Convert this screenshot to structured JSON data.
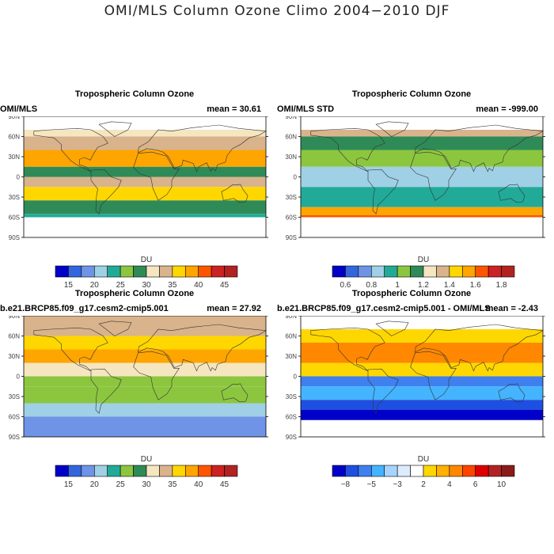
{
  "title": "OMI/MLS Column Ozone Climo 2004−2010 DJF",
  "panels": [
    {
      "title": "Tropospheric Column Ozone",
      "left_label": "OMI/MLS",
      "mean_text": "mean =  30.61",
      "lat_labels": [
        "90N",
        "60N",
        "30N",
        "0",
        "30S",
        "60S",
        "90S"
      ],
      "colorbar": {
        "unit": "DU",
        "colors": [
          "#0000c8",
          "#3366dd",
          "#6f93e6",
          "#9fd0e6",
          "#22aa99",
          "#8cc63f",
          "#2e8b57",
          "#f5e6c0",
          "#d9b38c",
          "#ffd700",
          "#ffa500",
          "#ff5500",
          "#cc2222",
          "#b22222"
        ],
        "tick_labels": [
          "15",
          "20",
          "25",
          "30",
          "35",
          "40",
          "45"
        ]
      }
    },
    {
      "title": "Tropospheric Column Ozone",
      "left_label": "OMI/MLS STD",
      "mean_text": "mean = -999.00",
      "lat_labels": [
        "90N",
        "60N",
        "30N",
        "0",
        "30S",
        "60S",
        "90S"
      ],
      "colorbar": {
        "unit": "DU",
        "colors": [
          "#0000c8",
          "#3366dd",
          "#6f93e6",
          "#9fd0e6",
          "#22aa99",
          "#8cc63f",
          "#2e8b57",
          "#f5e6c0",
          "#d9b38c",
          "#ffd700",
          "#ffa500",
          "#ff5500",
          "#cc2222",
          "#b22222"
        ],
        "tick_labels": [
          "0.6",
          "0.8",
          "1",
          "1.2",
          "1.4",
          "1.6",
          "1.8"
        ]
      }
    },
    {
      "title": "Tropospheric Column Ozone",
      "left_label": "b.e21.BRCP85.f09_g17.cesm2-cmip5.001",
      "mean_text": "mean =  27.92",
      "lat_labels": [
        "90N",
        "60N",
        "30N",
        "0",
        "30S",
        "60S",
        "90S"
      ],
      "colorbar": {
        "unit": "DU",
        "colors": [
          "#0000c8",
          "#3366dd",
          "#6f93e6",
          "#9fd0e6",
          "#22aa99",
          "#8cc63f",
          "#2e8b57",
          "#f5e6c0",
          "#d9b38c",
          "#ffd700",
          "#ffa500",
          "#ff5500",
          "#cc2222",
          "#b22222"
        ],
        "tick_labels": [
          "15",
          "20",
          "25",
          "30",
          "35",
          "40",
          "45"
        ]
      }
    },
    {
      "title": "Tropospheric Column Ozone",
      "left_label": "b.e21.BRCP85.f09_g17.cesm2-cmip5.001 - OMI/MLS",
      "mean_text": "mean = -2.43",
      "lat_labels": [
        "90N",
        "60N",
        "30N",
        "0",
        "30S",
        "60S",
        "90S"
      ],
      "colorbar": {
        "unit": "DU",
        "colors": [
          "#0000c8",
          "#1f4fe0",
          "#3f7ff0",
          "#44b4ff",
          "#a6d4ff",
          "#dcecff",
          "#ffffff",
          "#ffd700",
          "#ffb000",
          "#ff8800",
          "#ff4400",
          "#dd0000",
          "#b22222",
          "#8b1a1a"
        ],
        "tick_labels": [
          "−8",
          "−5",
          "−3",
          "2",
          "4",
          "6",
          "10"
        ]
      }
    }
  ],
  "chart_data": [
    {
      "type": "heatmap",
      "title": "Tropospheric Column Ozone",
      "subtitle": "OMI/MLS",
      "units": "DU",
      "mean": 30.61,
      "ylim_deg": [
        -90,
        90
      ],
      "y_ticks": [
        "90N",
        "60N",
        "30N",
        "0",
        "30S",
        "60S",
        "90S"
      ],
      "colorbar_levels": [
        15,
        20,
        25,
        30,
        35,
        40,
        45
      ],
      "zonal_bands": [
        {
          "lat": [
            60,
            70
          ],
          "value": 30
        },
        {
          "lat": [
            40,
            60
          ],
          "value": 34
        },
        {
          "lat": [
            15,
            40
          ],
          "value": 38
        },
        {
          "lat": [
            0,
            15
          ],
          "value": 29
        },
        {
          "lat": [
            -15,
            0
          ],
          "value": 33
        },
        {
          "lat": [
            -35,
            -15
          ],
          "value": 36
        },
        {
          "lat": [
            -55,
            -35
          ],
          "value": 28
        },
        {
          "lat": [
            -60,
            -55
          ],
          "value": 25
        }
      ]
    },
    {
      "type": "heatmap",
      "title": "Tropospheric Column Ozone",
      "subtitle": "OMI/MLS STD",
      "units": "DU",
      "mean": -999.0,
      "ylim_deg": [
        -90,
        90
      ],
      "y_ticks": [
        "90N",
        "60N",
        "30N",
        "0",
        "30S",
        "60S",
        "90S"
      ],
      "colorbar_levels": [
        0.6,
        0.8,
        1,
        1.2,
        1.4,
        1.6,
        1.8
      ],
      "zonal_bands": [
        {
          "lat": [
            60,
            70
          ],
          "value": 1.3
        },
        {
          "lat": [
            40,
            60
          ],
          "value": 1.2
        },
        {
          "lat": [
            15,
            40
          ],
          "value": 1.1
        },
        {
          "lat": [
            -15,
            15
          ],
          "value": 0.85
        },
        {
          "lat": [
            -45,
            -15
          ],
          "value": 0.95
        },
        {
          "lat": [
            -57,
            -45
          ],
          "value": 1.5
        },
        {
          "lat": [
            -60,
            -57
          ],
          "value": 1.65
        }
      ]
    },
    {
      "type": "heatmap",
      "title": "Tropospheric Column Ozone",
      "subtitle": "b.e21.BRCP85.f09_g17.cesm2-cmip5.001",
      "units": "DU",
      "mean": 27.92,
      "ylim_deg": [
        -90,
        90
      ],
      "y_ticks": [
        "90N",
        "60N",
        "30N",
        "0",
        "30S",
        "60S",
        "90S"
      ],
      "colorbar_levels": [
        15,
        20,
        25,
        30,
        35,
        40,
        45
      ],
      "zonal_bands": [
        {
          "lat": [
            60,
            90
          ],
          "value": 33
        },
        {
          "lat": [
            40,
            60
          ],
          "value": 35
        },
        {
          "lat": [
            20,
            40
          ],
          "value": 38
        },
        {
          "lat": [
            0,
            20
          ],
          "value": 31
        },
        {
          "lat": [
            -15,
            0
          ],
          "value": 27
        },
        {
          "lat": [
            -40,
            -15
          ],
          "value": 26
        },
        {
          "lat": [
            -60,
            -40
          ],
          "value": 23
        },
        {
          "lat": [
            -90,
            -60
          ],
          "value": 19
        }
      ]
    },
    {
      "type": "heatmap",
      "title": "Tropospheric Column Ozone",
      "subtitle": "b.e21.BRCP85.f09_g17.cesm2-cmip5.001 - OMI/MLS",
      "units": "DU",
      "mean": -2.43,
      "ylim_deg": [
        -90,
        90
      ],
      "y_ticks": [
        "90N",
        "60N",
        "30N",
        "0",
        "30S",
        "60S",
        "90S"
      ],
      "colorbar_levels": [
        -8,
        -5,
        -3,
        2,
        4,
        6,
        10
      ],
      "zonal_bands": [
        {
          "lat": [
            50,
            70
          ],
          "value": 2
        },
        {
          "lat": [
            20,
            50
          ],
          "value": 5
        },
        {
          "lat": [
            0,
            20
          ],
          "value": 1
        },
        {
          "lat": [
            -15,
            0
          ],
          "value": -5
        },
        {
          "lat": [
            -35,
            -15
          ],
          "value": -4
        },
        {
          "lat": [
            -50,
            -35
          ],
          "value": -6
        },
        {
          "lat": [
            -65,
            -50
          ],
          "value": -8
        }
      ]
    }
  ]
}
